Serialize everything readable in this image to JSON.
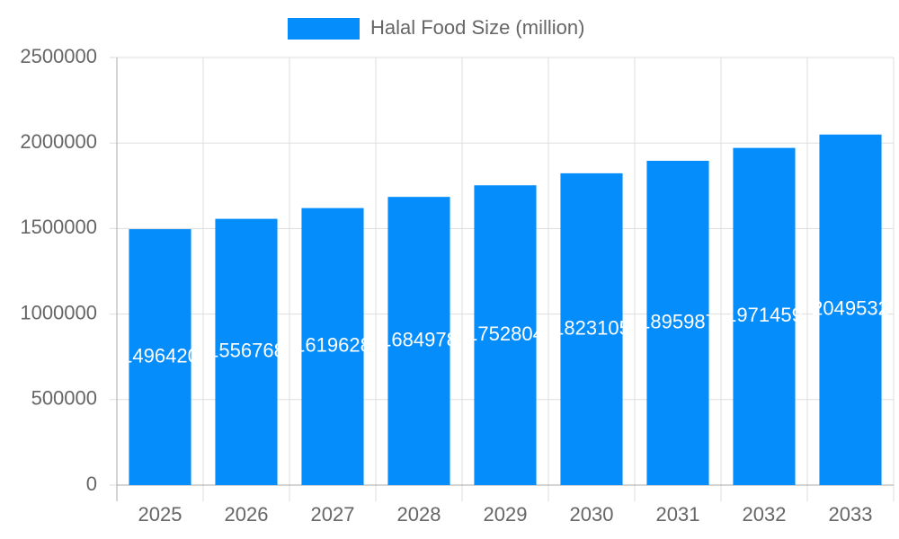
{
  "chart_data": {
    "type": "bar",
    "legend_label": "Halal Food Size (million)",
    "categories": [
      "2025",
      "2026",
      "2027",
      "2028",
      "2029",
      "2030",
      "2031",
      "2032",
      "2033"
    ],
    "values": [
      1496420,
      1556768,
      1619628,
      1684978,
      1752804,
      1823105,
      1895987,
      1971459,
      2049532
    ],
    "color": "#058dfc",
    "ylim": [
      0,
      2500000
    ],
    "yticks": [
      0,
      500000,
      1000000,
      1500000,
      2000000,
      2500000
    ],
    "grid": true,
    "legend_position": "top",
    "data_labels": true
  }
}
